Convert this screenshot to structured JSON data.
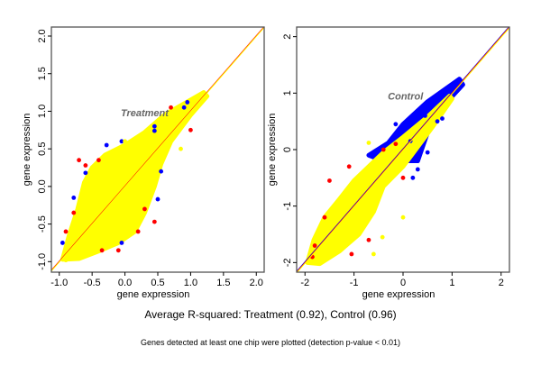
{
  "chart_data": [
    {
      "type": "scatter",
      "panel_label": "Treatment",
      "xlabel": "gene expression",
      "ylabel": "gene expression",
      "xlim": [
        -1.12,
        2.12
      ],
      "ylim": [
        -1.14,
        2.12
      ],
      "xticks": [
        "-1.0",
        "-0.5",
        "0.0",
        "0.5",
        "1.0",
        "1.5",
        "2.0"
      ],
      "xtick_values": [
        -1,
        -0.5,
        0,
        0.5,
        1,
        1.5,
        2
      ],
      "yticks": [
        "-1.0",
        "-0.5",
        "0.0",
        "0.5",
        "1.0",
        "1.5",
        "2.0"
      ],
      "ytick_values": [
        -1,
        -0.5,
        0,
        0.5,
        1,
        1.5,
        2
      ],
      "reference_lines": [
        "#ff0000",
        "#ffff00"
      ],
      "dense_clouds": [
        {
          "color": "#ffff00",
          "outline": [
            [
              -0.95,
              -0.97
            ],
            [
              -0.85,
              -0.65
            ],
            [
              -0.72,
              -0.3
            ],
            [
              -0.62,
              0.05
            ],
            [
              -0.5,
              0.25
            ],
            [
              -0.3,
              0.42
            ],
            [
              0,
              0.55
            ],
            [
              0.3,
              0.72
            ],
            [
              0.6,
              0.95
            ],
            [
              0.9,
              1.1
            ],
            [
              1.2,
              1.25
            ],
            [
              1.25,
              1.2
            ],
            [
              1.0,
              0.95
            ],
            [
              0.7,
              0.6
            ],
            [
              0.55,
              0.3
            ],
            [
              0.45,
              0.0
            ],
            [
              0.3,
              -0.35
            ],
            [
              0.15,
              -0.6
            ],
            [
              -0.1,
              -0.75
            ],
            [
              -0.4,
              -0.86
            ],
            [
              -0.7,
              -0.96
            ]
          ]
        }
      ],
      "series": [
        {
          "color": "#ff0000",
          "points": [
            [
              -0.7,
              0.35
            ],
            [
              -0.6,
              0.28
            ],
            [
              -0.9,
              -0.6
            ],
            [
              -0.1,
              -0.85
            ],
            [
              0.45,
              -0.47
            ],
            [
              1.0,
              0.75
            ],
            [
              -0.4,
              0.35
            ],
            [
              0.3,
              -0.3
            ],
            [
              -0.35,
              -0.85
            ],
            [
              0.2,
              -0.6
            ],
            [
              -0.78,
              -0.35
            ],
            [
              0.7,
              1.05
            ]
          ]
        },
        {
          "color": "#0000ff",
          "points": [
            [
              0.45,
              0.8
            ],
            [
              -0.6,
              0.18
            ],
            [
              -0.28,
              0.55
            ],
            [
              0.5,
              -0.17
            ],
            [
              0.55,
              0.2
            ],
            [
              -0.78,
              -0.15
            ],
            [
              -0.05,
              0.6
            ],
            [
              0.95,
              1.12
            ],
            [
              -0.05,
              -0.75
            ],
            [
              0.9,
              1.05
            ],
            [
              0.45,
              0.74
            ],
            [
              -0.95,
              -0.75
            ]
          ]
        },
        {
          "color": "#ffff00",
          "points": [
            [
              -0.9,
              -0.98
            ],
            [
              0.85,
              0.5
            ],
            [
              0.0,
              0.6
            ],
            [
              0.55,
              0.35
            ],
            [
              -0.7,
              -0.85
            ]
          ]
        }
      ]
    },
    {
      "type": "scatter",
      "panel_label": "Control",
      "xlabel": "gene expression",
      "ylabel": "gene expression",
      "xlim": [
        -2.17,
        2.17
      ],
      "ylim": [
        -2.17,
        2.17
      ],
      "xticks": [
        "-2",
        "-1",
        "0",
        "1",
        "2"
      ],
      "xtick_values": [
        -2,
        -1,
        0,
        1,
        2
      ],
      "yticks": [
        "-2",
        "-1",
        "0",
        "1",
        "2"
      ],
      "ytick_values": [
        -2,
        -1,
        0,
        1,
        2
      ],
      "reference_lines": [
        "#0000ff",
        "#ff0000",
        "#ffff00"
      ],
      "dense_clouds": [
        {
          "color": "#0000ff",
          "outline": [
            [
              -0.7,
              -0.1
            ],
            [
              -0.3,
              0.12
            ],
            [
              0,
              0.45
            ],
            [
              0.5,
              0.85
            ],
            [
              1.15,
              1.25
            ],
            [
              1.22,
              1.15
            ],
            [
              0.8,
              0.75
            ],
            [
              0.5,
              0.3
            ],
            [
              0.3,
              -0.2
            ],
            [
              0,
              -0.2
            ],
            [
              -0.4,
              -0.2
            ]
          ]
        },
        {
          "color": "#ffff00",
          "outline": [
            [
              -1.95,
              -2.0
            ],
            [
              -1.82,
              -1.6
            ],
            [
              -1.6,
              -1.2
            ],
            [
              -1.3,
              -0.88
            ],
            [
              -1.0,
              -0.55
            ],
            [
              -0.7,
              -0.3
            ],
            [
              -0.4,
              -0.05
            ],
            [
              0,
              0.22
            ],
            [
              0.5,
              0.58
            ],
            [
              0.95,
              0.95
            ],
            [
              1.0,
              0.9
            ],
            [
              0.6,
              0.4
            ],
            [
              0.3,
              0.05
            ],
            [
              0,
              -0.3
            ],
            [
              -0.4,
              -0.65
            ],
            [
              -0.6,
              -1.1
            ],
            [
              -0.9,
              -1.5
            ],
            [
              -1.3,
              -1.8
            ],
            [
              -1.7,
              -2.02
            ]
          ]
        }
      ],
      "series": [
        {
          "color": "#ff0000",
          "points": [
            [
              -1.5,
              -0.55
            ],
            [
              -1.1,
              -0.3
            ],
            [
              -1.85,
              -1.9
            ],
            [
              -1.05,
              -1.85
            ],
            [
              -0.4,
              0.0
            ],
            [
              -1.6,
              -1.2
            ],
            [
              -0.7,
              -1.6
            ],
            [
              0,
              -0.5
            ],
            [
              -1.8,
              -1.7
            ],
            [
              -0.15,
              0.1
            ]
          ]
        },
        {
          "color": "#0000ff",
          "points": [
            [
              -0.15,
              0.45
            ],
            [
              0.15,
              0.15
            ],
            [
              0.3,
              -0.35
            ],
            [
              0.7,
              0.5
            ],
            [
              -0.6,
              -0.05
            ],
            [
              0.8,
              0.55
            ],
            [
              0.5,
              -0.05
            ],
            [
              0.2,
              -0.5
            ],
            [
              0.45,
              0.6
            ]
          ]
        },
        {
          "color": "#ffff00",
          "points": [
            [
              0,
              -1.2
            ],
            [
              -0.42,
              -1.55
            ],
            [
              -0.7,
              0.12
            ],
            [
              -0.6,
              -1.85
            ],
            [
              -1.0,
              -1.1
            ]
          ]
        }
      ]
    }
  ],
  "caption": "Average R-squared: Treatment (0.92), Control (0.96)",
  "footnote": "Genes detected at least one chip were plotted (detection p-value < 0.01)"
}
